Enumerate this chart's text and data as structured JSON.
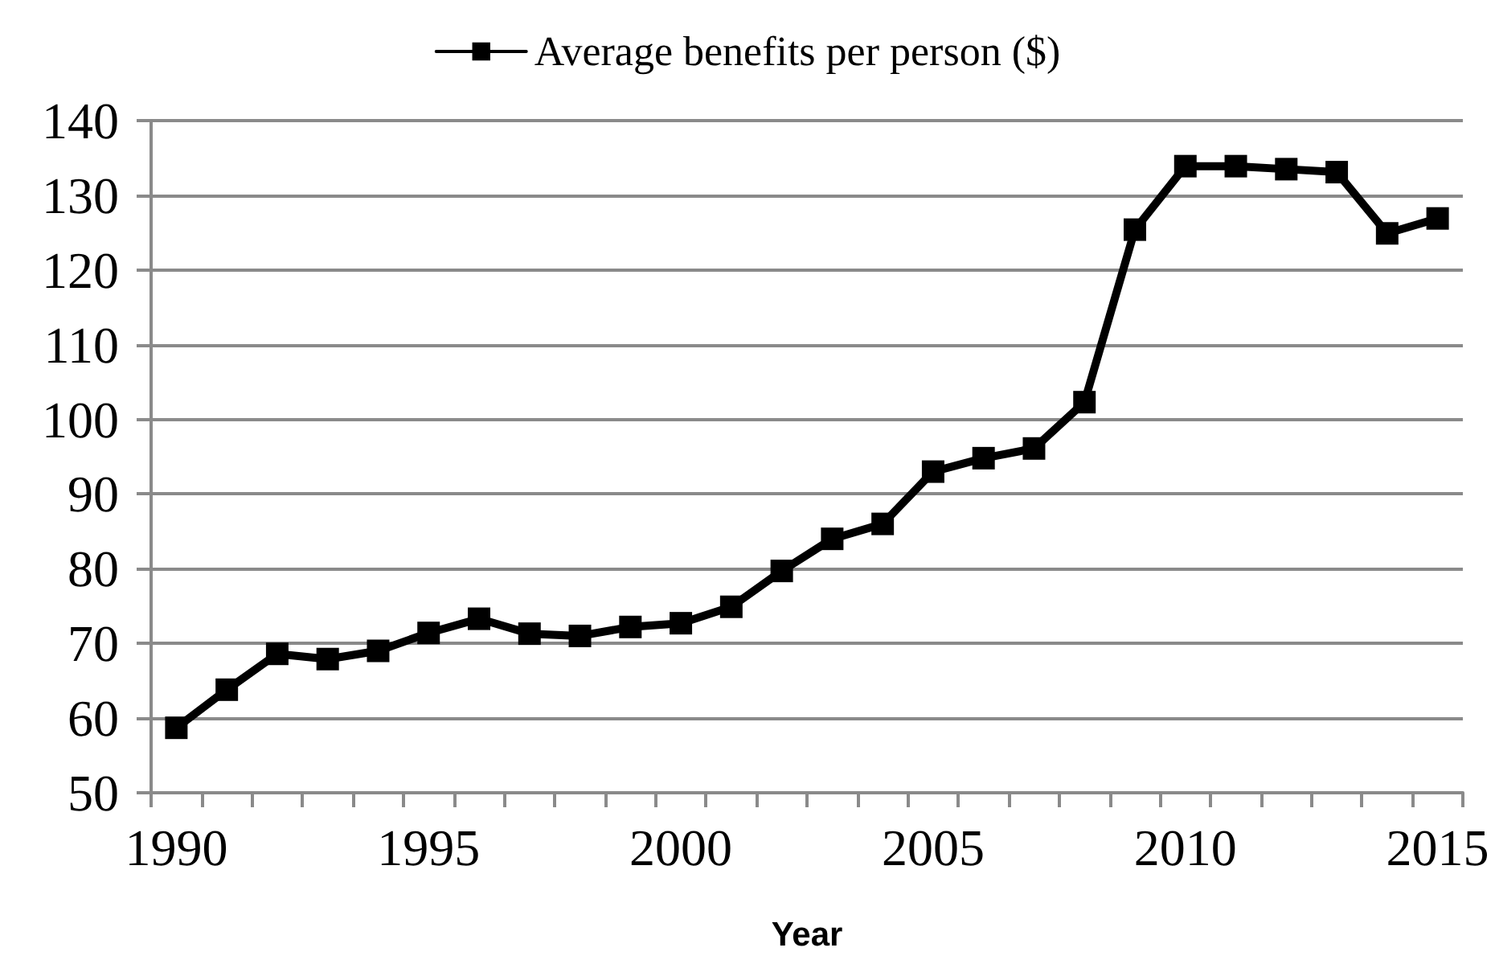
{
  "chart_data": {
    "type": "line",
    "xlabel": "Year",
    "categories": [
      "1990",
      null,
      null,
      null,
      null,
      "1995",
      null,
      null,
      null,
      null,
      "2000",
      null,
      null,
      null,
      null,
      "2005",
      null,
      null,
      null,
      null,
      "2010",
      null,
      null,
      null,
      null,
      "2015"
    ],
    "series": [
      {
        "name": "Average benefits per person ($)",
        "color": "#000000",
        "values": [
          58.7,
          63.8,
          68.6,
          67.9,
          69.0,
          71.4,
          73.3,
          71.3,
          71.0,
          72.2,
          72.7,
          74.9,
          79.7,
          84.0,
          86.0,
          93.0,
          94.8,
          96.1,
          102.3,
          125.4,
          133.9,
          133.9,
          133.5,
          133.1,
          124.9,
          126.9
        ]
      }
    ],
    "ylim": [
      50,
      140
    ],
    "yticks": [
      50,
      60,
      70,
      80,
      90,
      100,
      110,
      120,
      130,
      140
    ],
    "grid": "y",
    "legend": "top",
    "marker": "square",
    "line_style": "solid"
  }
}
